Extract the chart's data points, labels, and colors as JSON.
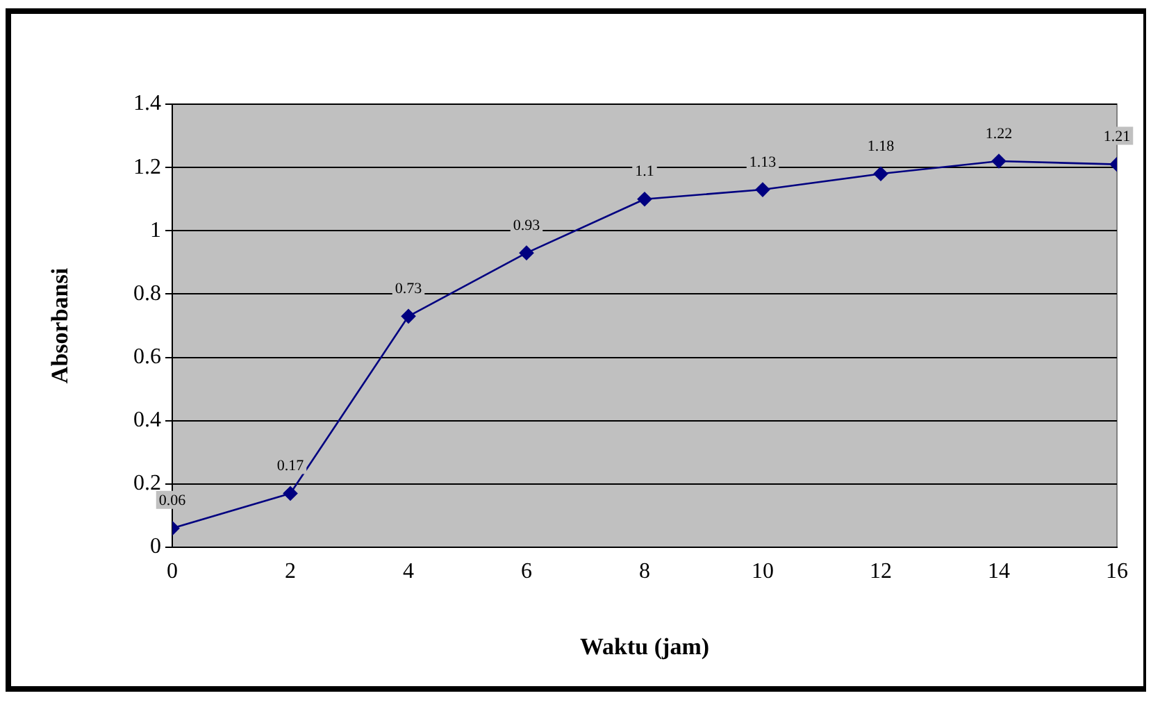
{
  "chart_data": {
    "type": "line",
    "xlabel": "Waktu (jam)",
    "ylabel": "Absorbansi",
    "x": [
      0,
      2,
      4,
      6,
      8,
      10,
      12,
      14,
      16
    ],
    "series": [
      {
        "color": "#000080",
        "values": [
          0.06,
          0.17,
          0.73,
          0.93,
          1.1,
          1.13,
          1.18,
          1.22,
          1.21
        ]
      }
    ],
    "xlim": [
      0,
      16
    ],
    "xticks": [
      0,
      2,
      4,
      6,
      8,
      10,
      12,
      14,
      16
    ],
    "ylim": [
      0,
      1.4
    ],
    "yticks": [
      0,
      0.2,
      0.4,
      0.6,
      0.8,
      1,
      1.2,
      1.4
    ],
    "grid": "y",
    "legend": false,
    "marker": "diamond",
    "line_style": "solid",
    "data_labels": true
  }
}
